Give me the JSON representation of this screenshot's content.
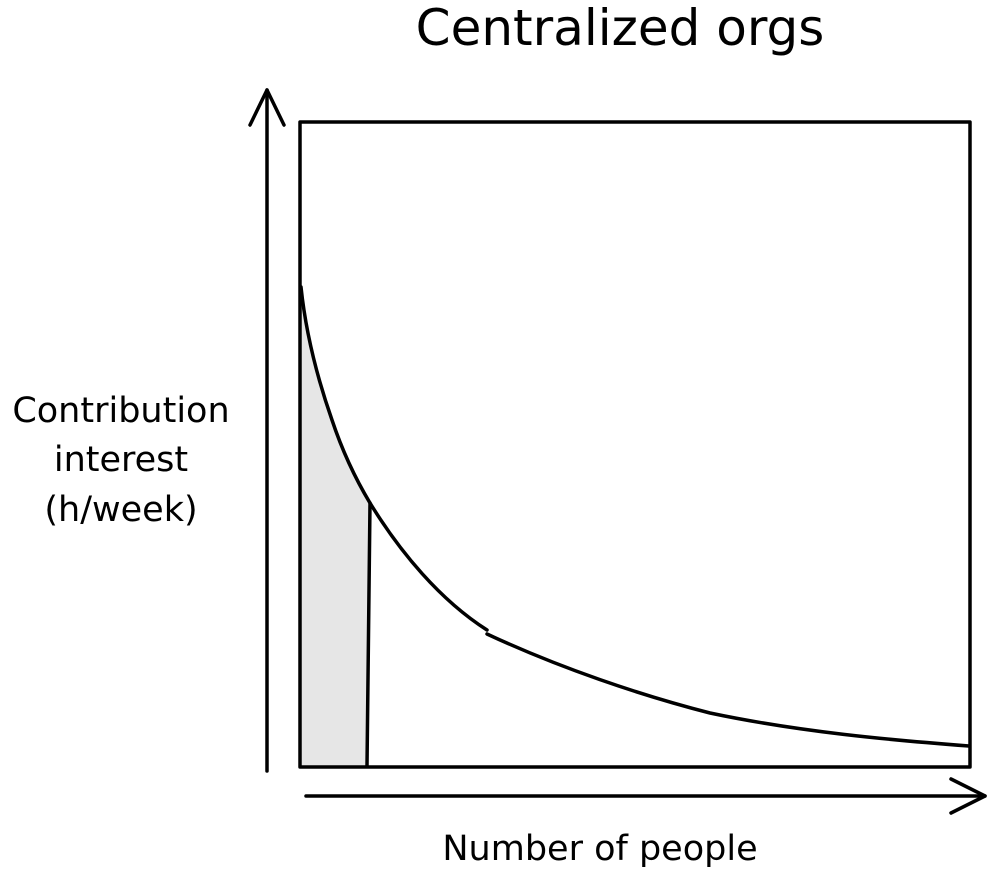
{
  "title": "Centralized orgs",
  "y_axis_label": {
    "line1": "Contribution",
    "line2": "interest",
    "line3": "(h/week)"
  },
  "x_axis_label": "Number of people",
  "colors": {
    "stroke": "#000000",
    "shaded_region": "#e6e6e6",
    "background": "#ffffff"
  }
}
